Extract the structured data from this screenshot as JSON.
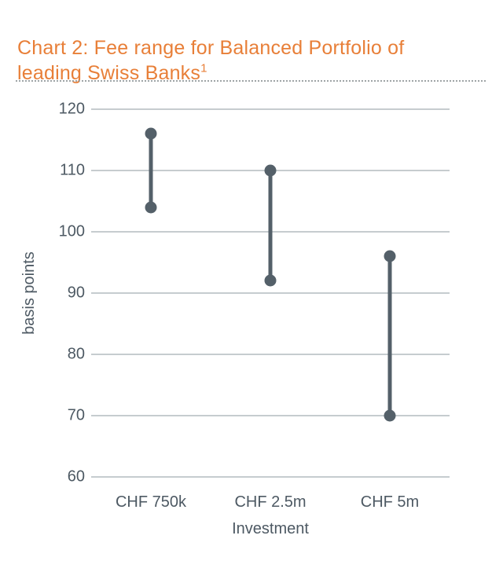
{
  "title": {
    "line1": "Chart 2: Fee range for Balanced Portfolio of",
    "line2": "leading Swiss Banks",
    "superscript": "1"
  },
  "colors": {
    "title_orange": "#e87f38",
    "marker": "#546069",
    "gridline": "#c6cccf",
    "axis_text": "#4d5963",
    "divider_dotted": "#9fa4a6"
  },
  "chart_data": {
    "type": "dumbbell-range",
    "title": "Chart 2: Fee range for Balanced Portfolio of leading Swiss Banks¹",
    "categories": [
      "CHF 750k",
      "CHF 2.5m",
      "CHF 5m"
    ],
    "series": [
      {
        "name": "fee range low (bp)",
        "values": [
          104,
          92,
          70
        ]
      },
      {
        "name": "fee range high (bp)",
        "values": [
          116,
          110,
          96
        ]
      }
    ],
    "ranges_bp": [
      [
        104,
        116
      ],
      [
        92,
        110
      ],
      [
        70,
        96
      ]
    ],
    "xlabel": "Investment",
    "ylabel": "basis points",
    "ylim": [
      60,
      120
    ],
    "yticks": [
      120,
      110,
      100,
      90,
      80,
      70,
      60
    ],
    "grid": "horizontal gridlines only",
    "legend": "none",
    "marker": "dot at each end of vertical range bar"
  }
}
